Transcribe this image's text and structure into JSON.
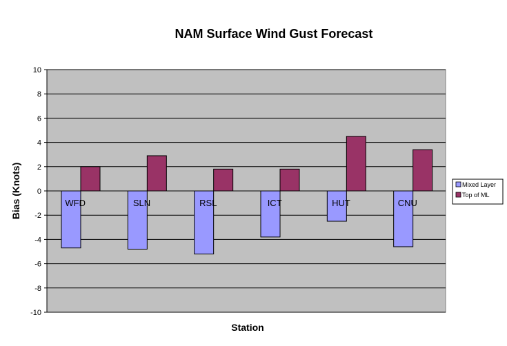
{
  "chart_data": {
    "type": "bar",
    "title": "NAM Surface Wind Gust Forecast",
    "xlabel": "Station",
    "ylabel": "Bias (Knots)",
    "categories": [
      "WFD",
      "SLN",
      "RSL",
      "ICT",
      "HUT",
      "CNU"
    ],
    "series": [
      {
        "name": "Mixed Layer",
        "values": [
          -4.7,
          -4.8,
          -5.2,
          -3.8,
          -2.5,
          -4.6
        ]
      },
      {
        "name": "Top of ML",
        "values": [
          2.0,
          2.9,
          1.8,
          1.8,
          4.5,
          3.4
        ]
      }
    ],
    "ylim": [
      -10,
      10
    ],
    "yticks": [
      10,
      8,
      6,
      4,
      2,
      0,
      -2,
      -4,
      -6,
      -8,
      -10
    ],
    "grid": true,
    "legend_position": "right",
    "colors": {
      "plot_background": "#c0c0c0",
      "series": [
        "#9999ff",
        "#993366"
      ],
      "grid": "#000000"
    }
  }
}
